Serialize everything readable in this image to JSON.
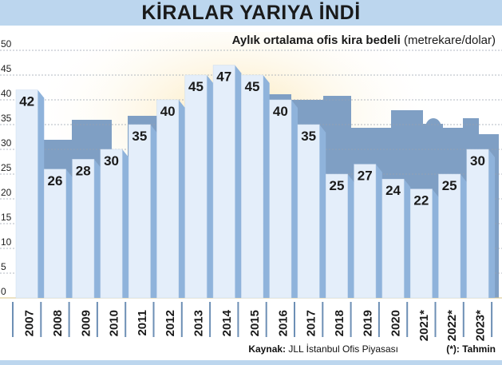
{
  "title": "KİRALAR YARIYA İNDİ",
  "subtitle_bold": "Aylık ortalama ofis kira bedeli",
  "subtitle_unit": "(metrekare/dolar)",
  "footer": {
    "source_label": "Kaynak:",
    "source_text": "JLL İstanbul Ofis Piyasası",
    "note": "(*): Tahmin"
  },
  "colors": {
    "bar_face": "#e4eefa",
    "bar_side": "#8fb3db",
    "skyline": "#7f9fc4",
    "header": "#bcd6ee"
  },
  "chart_data": {
    "type": "bar",
    "title": "KİRALAR YARIYA İNDİ",
    "ylabel": "Aylık ortalama ofis kira bedeli (metrekare/dolar)",
    "categories": [
      "2007",
      "2008",
      "2009",
      "2010",
      "2011",
      "2012",
      "2013",
      "2014",
      "2015",
      "2016",
      "2017",
      "2018",
      "2019",
      "2020",
      "2021*",
      "2022*",
      "2023*"
    ],
    "values": [
      42,
      26,
      28,
      30,
      35,
      40,
      45,
      47,
      45,
      40,
      35,
      25,
      27,
      24,
      22,
      25,
      30
    ],
    "ylim": [
      0,
      50
    ],
    "yticks": [
      0,
      5,
      10,
      15,
      20,
      25,
      30,
      35,
      40,
      45,
      50
    ],
    "grid": true,
    "data_labels": true
  }
}
